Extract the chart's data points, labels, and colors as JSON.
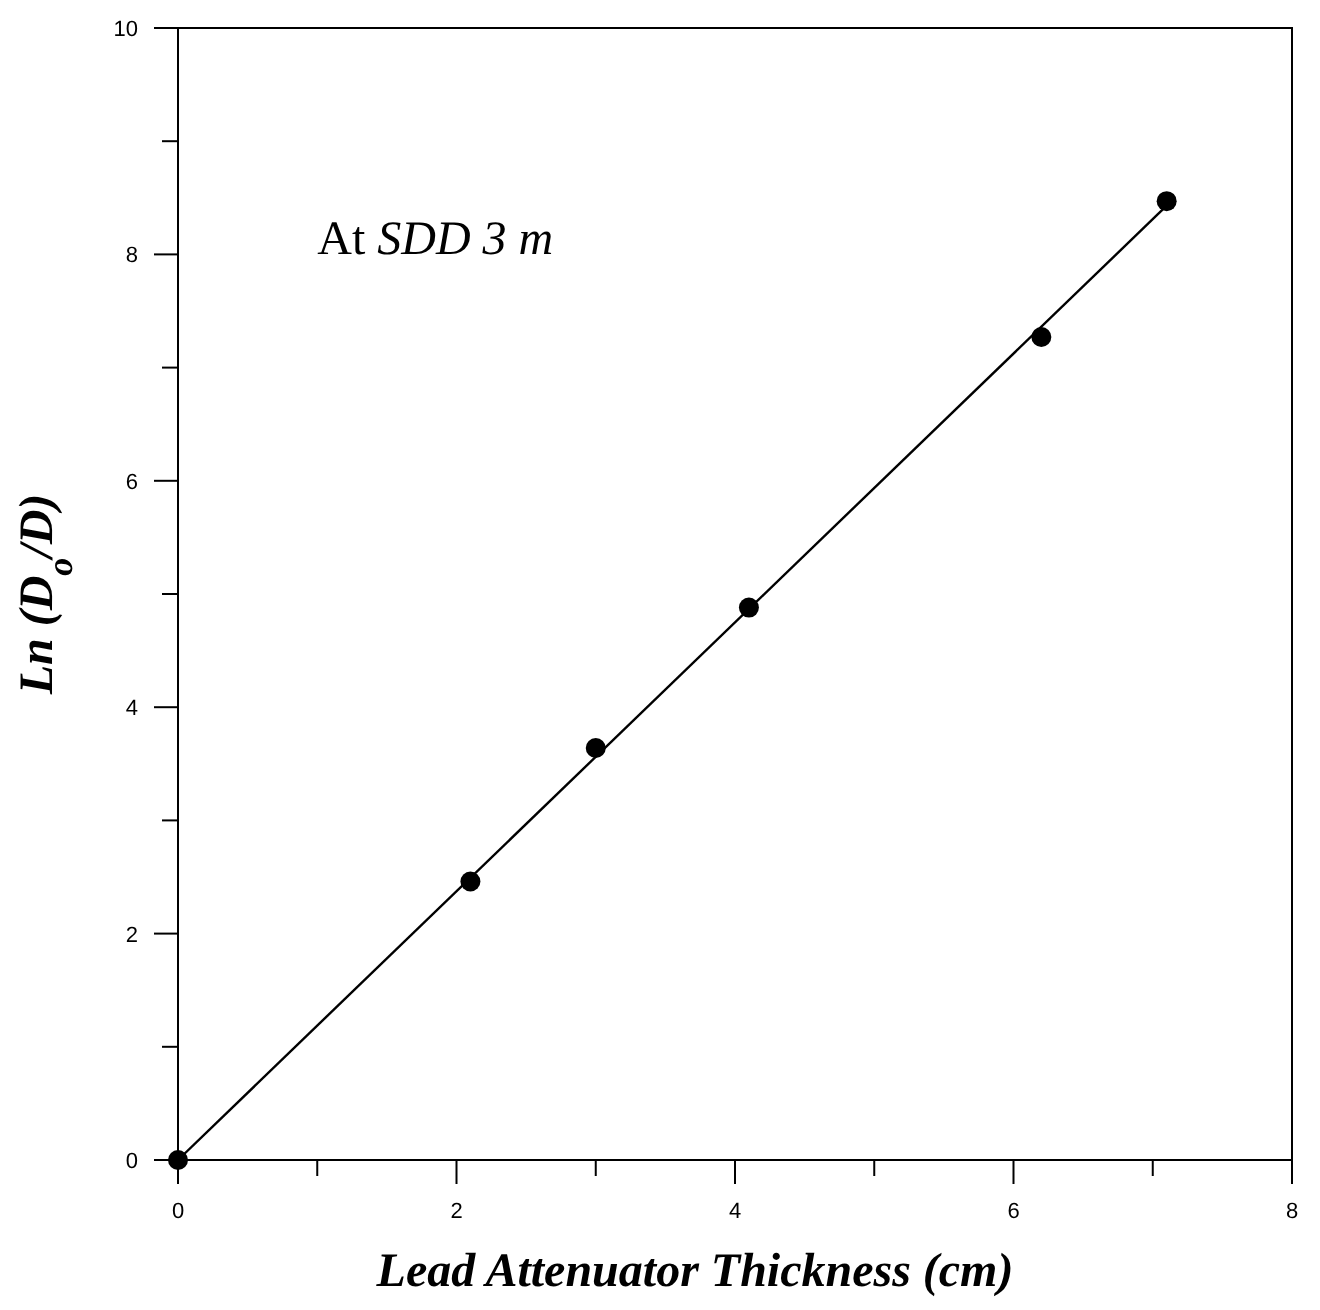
{
  "chart_data": {
    "type": "scatter",
    "xlabel": "Lead Attenuator Thickness (cm)",
    "ylabel": "Ln (D$_{o}$/D)",
    "annotations": [
      "At SDD 3 m"
    ],
    "xlim": [
      0,
      8
    ],
    "xticks": [
      0,
      {
        "value": 1,
        "label": null
      },
      2,
      {
        "value": 3,
        "label": null
      },
      4,
      {
        "value": 5,
        "label": null
      },
      6,
      {
        "value": 7,
        "label": null
      },
      8
    ],
    "ylim": [
      0,
      10
    ],
    "yticks": [
      0,
      {
        "value": 1,
        "label": null
      },
      2,
      {
        "value": 3,
        "label": null
      },
      4,
      {
        "value": 5,
        "label": null
      },
      6,
      {
        "value": 7,
        "label": null
      },
      8,
      {
        "value": 9,
        "label": null
      },
      10
    ],
    "grid": false,
    "series": [
      {
        "color": "#000000",
        "marker": "circle",
        "x": [
          0,
          2.1,
          3.0,
          4.1,
          6.2,
          7.1
        ],
        "values": [
          0,
          2.46,
          3.64,
          4.88,
          7.27,
          8.47
        ]
      },
      {
        "type": "line",
        "color": "#000000",
        "marker": "none",
        "line_style": "solid",
        "x": [
          0,
          7.1
        ],
        "values": [
          0,
          8.43
        ]
      }
    ]
  }
}
